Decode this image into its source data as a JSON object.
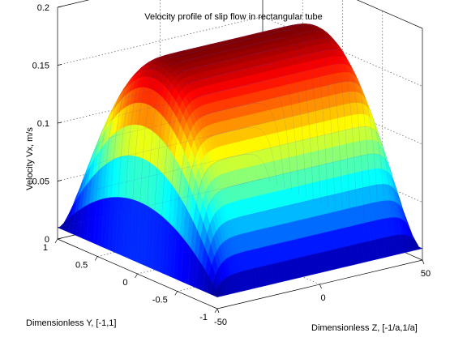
{
  "chart_data": {
    "type": "surface",
    "title": "Velocity profile of slip flow in rectangular tube",
    "xlabel": "Dimensionless Y, [-1,1]",
    "ylabel": "Dimensionless Z, [-1/a,1/a]",
    "zlabel": "Velocity Vx, m/s",
    "y_ticks": [
      "1",
      "0.5",
      "0",
      "-0.5",
      "-1"
    ],
    "z_ticks": [
      "-50",
      "0",
      "50"
    ],
    "v_ticks": [
      "0",
      "0.05",
      "0.1",
      "0.15",
      "0.2"
    ],
    "y_range": [
      -1,
      1
    ],
    "z_range": [
      -50,
      50
    ],
    "v_range": [
      0,
      0.2
    ],
    "v_max": 0.18,
    "v_wall": 0.01,
    "colormap": "jet",
    "grid": true
  }
}
